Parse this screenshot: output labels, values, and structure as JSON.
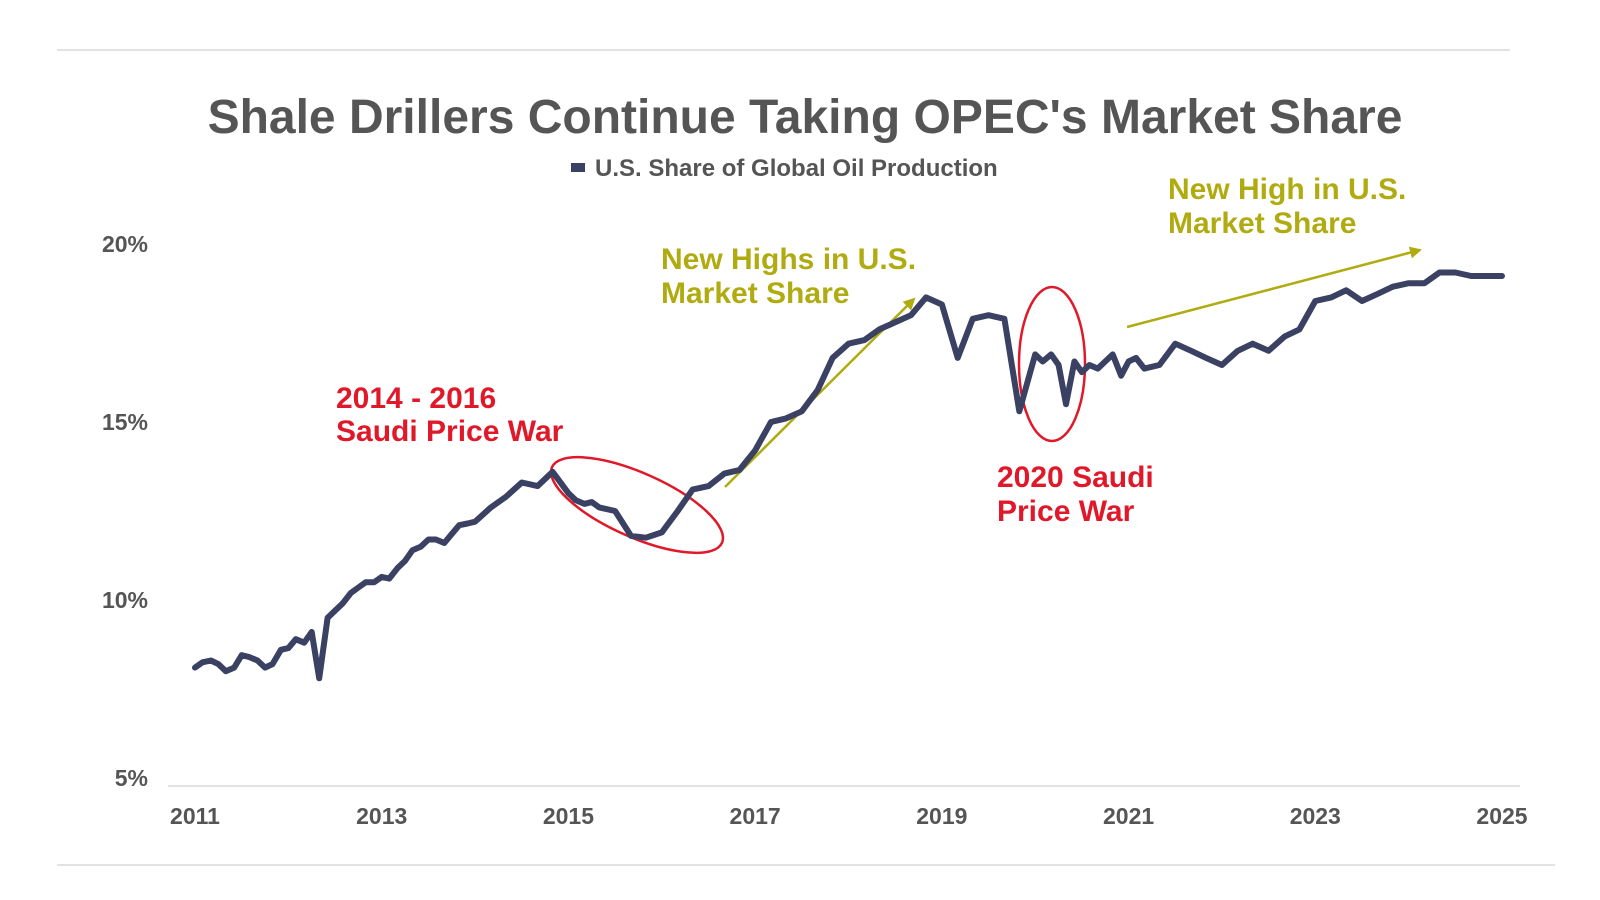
{
  "chart_data": {
    "type": "line",
    "title": "Shale Drillers Continue Taking OPEC's Market Share",
    "legend": {
      "placement": "top-center",
      "entries": [
        "U.S. Share of Global Oil Production"
      ]
    },
    "xlabel": "",
    "ylabel": "",
    "x_ticks": [
      "2011",
      "2013",
      "2015",
      "2017",
      "2019",
      "2021",
      "2023",
      "2025"
    ],
    "y_ticks": [
      "5%",
      "10%",
      "15%",
      "20%"
    ],
    "xlim": [
      2010.75,
      2025.5
    ],
    "ylim": [
      5,
      20
    ],
    "grid": false,
    "colors": {
      "series": "#3a4163",
      "red_annotation": "#e0192a",
      "olive_annotation": "#b0ab10",
      "text": "#555555"
    },
    "series": [
      {
        "name": "U.S. Share of Global Oil Production",
        "x": [
          2011.0,
          2011.08,
          2011.17,
          2011.25,
          2011.33,
          2011.42,
          2011.5,
          2011.58,
          2011.67,
          2011.75,
          2011.83,
          2011.92,
          2012.0,
          2012.08,
          2012.17,
          2012.25,
          2012.33,
          2012.42,
          2012.5,
          2012.58,
          2012.67,
          2012.75,
          2012.83,
          2012.92,
          2013.0,
          2013.08,
          2013.17,
          2013.25,
          2013.33,
          2013.42,
          2013.5,
          2013.58,
          2013.67,
          2013.75,
          2013.83,
          2013.92,
          2014.0,
          2014.17,
          2014.33,
          2014.5,
          2014.67,
          2014.83,
          2015.0,
          2015.08,
          2015.17,
          2015.25,
          2015.33,
          2015.5,
          2015.67,
          2015.83,
          2016.0,
          2016.17,
          2016.33,
          2016.5,
          2016.67,
          2016.83,
          2017.0,
          2017.17,
          2017.33,
          2017.5,
          2017.67,
          2017.83,
          2018.0,
          2018.17,
          2018.33,
          2018.5,
          2018.67,
          2018.83,
          2019.0,
          2019.17,
          2019.33,
          2019.5,
          2019.67,
          2019.83,
          2020.0,
          2020.08,
          2020.17,
          2020.25,
          2020.33,
          2020.42,
          2020.5,
          2020.58,
          2020.67,
          2020.75,
          2020.83,
          2020.92,
          2021.0,
          2021.08,
          2021.17,
          2021.33,
          2021.5,
          2021.67,
          2021.83,
          2022.0,
          2022.17,
          2022.33,
          2022.5,
          2022.67,
          2022.83,
          2023.0,
          2023.17,
          2023.33,
          2023.5,
          2023.67,
          2023.83,
          2024.0,
          2024.17,
          2024.33,
          2024.5,
          2024.67,
          2024.83,
          2025.0
        ],
        "y": [
          8.1,
          8.25,
          8.3,
          8.2,
          8.0,
          8.1,
          8.45,
          8.4,
          8.3,
          8.1,
          8.2,
          8.6,
          8.65,
          8.9,
          8.8,
          9.1,
          7.8,
          9.5,
          9.7,
          9.9,
          10.2,
          10.35,
          10.5,
          10.5,
          10.65,
          10.6,
          10.9,
          11.1,
          11.4,
          11.5,
          11.7,
          11.7,
          11.6,
          11.85,
          12.1,
          12.15,
          12.2,
          12.6,
          12.9,
          13.3,
          13.2,
          13.6,
          13.0,
          12.8,
          12.7,
          12.75,
          12.6,
          12.5,
          11.8,
          11.75,
          11.9,
          12.5,
          13.1,
          13.2,
          13.55,
          13.65,
          14.2,
          15.0,
          15.1,
          15.3,
          15.9,
          16.8,
          17.2,
          17.3,
          17.6,
          17.8,
          18.0,
          18.5,
          18.3,
          16.8,
          17.9,
          18.0,
          17.9,
          15.3,
          16.9,
          16.7,
          16.9,
          16.6,
          15.5,
          16.7,
          16.4,
          16.6,
          16.5,
          16.7,
          16.9,
          16.3,
          16.7,
          16.8,
          16.5,
          16.6,
          17.2,
          17.0,
          16.8,
          16.6,
          17.0,
          17.2,
          17.0,
          17.4,
          17.6,
          18.4,
          18.5,
          18.7,
          18.4,
          18.6,
          18.8,
          18.9,
          18.9,
          19.2,
          19.2,
          19.1,
          19.1,
          19.1
        ]
      }
    ],
    "annotations": [
      {
        "text_lines": [
          "2014 - 2016",
          "Saudi Price War"
        ],
        "color": "red"
      },
      {
        "text_lines": [
          "New Highs in U.S.",
          "Market Share"
        ],
        "color": "olive"
      },
      {
        "text_lines": [
          "2020 Saudi",
          "Price War"
        ],
        "color": "red"
      },
      {
        "text_lines": [
          "New High in U.S.",
          "Market Share"
        ],
        "color": "olive"
      }
    ]
  }
}
